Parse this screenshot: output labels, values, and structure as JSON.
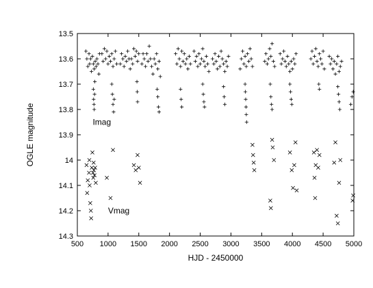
{
  "chart_data": {
    "type": "scatter",
    "xlabel": "HJD - 2450000",
    "ylabel": "OGLE magnitude",
    "xlim": [
      500,
      5000
    ],
    "ylim": [
      14.3,
      13.5
    ],
    "y_inverted": true,
    "xticks": [
      500,
      1000,
      1500,
      2000,
      2500,
      3000,
      3500,
      4000,
      4500,
      5000
    ],
    "xtick_labels": [
      "500",
      "1000",
      "1500",
      "2000",
      "2500",
      "3000",
      "3500",
      "4000",
      "4500",
      "5000"
    ],
    "yticks": [
      13.5,
      13.6,
      13.7,
      13.8,
      13.9,
      14.0,
      14.1,
      14.2,
      14.3
    ],
    "ytick_labels": [
      "13.5",
      "13.6",
      "13.7",
      "13.8",
      "13.9",
      "14",
      "14.1",
      "14.2",
      "14.3"
    ],
    "grid": false,
    "annotations": [
      {
        "text": "Imag",
        "x": 750,
        "y": 13.85
      },
      {
        "text": "Vmag",
        "x": 1000,
        "y": 14.2
      }
    ],
    "series": [
      {
        "name": "Imag",
        "marker": "plus",
        "points": [
          [
            640,
            13.57
          ],
          [
            655,
            13.6
          ],
          [
            670,
            13.63
          ],
          [
            690,
            13.58
          ],
          [
            700,
            13.62
          ],
          [
            715,
            13.6
          ],
          [
            730,
            13.65
          ],
          [
            745,
            13.59
          ],
          [
            760,
            13.62
          ],
          [
            775,
            13.64
          ],
          [
            790,
            13.61
          ],
          [
            805,
            13.63
          ],
          [
            820,
            13.6
          ],
          [
            835,
            13.62
          ],
          [
            850,
            13.66
          ],
          [
            860,
            13.58
          ],
          [
            760,
            13.72
          ],
          [
            765,
            13.76
          ],
          [
            770,
            13.78
          ],
          [
            775,
            13.8
          ],
          [
            780,
            13.74
          ],
          [
            785,
            13.69
          ],
          [
            900,
            13.58
          ],
          [
            920,
            13.61
          ],
          [
            940,
            13.56
          ],
          [
            960,
            13.6
          ],
          [
            980,
            13.57
          ],
          [
            1000,
            13.62
          ],
          [
            1020,
            13.59
          ],
          [
            1040,
            13.61
          ],
          [
            1060,
            13.58
          ],
          [
            1080,
            13.63
          ],
          [
            1100,
            13.6
          ],
          [
            1120,
            13.57
          ],
          [
            1140,
            13.62
          ],
          [
            1060,
            13.7
          ],
          [
            1070,
            13.74
          ],
          [
            1080,
            13.78
          ],
          [
            1090,
            13.81
          ],
          [
            1100,
            13.76
          ],
          [
            1200,
            13.62
          ],
          [
            1220,
            13.58
          ],
          [
            1240,
            13.6
          ],
          [
            1260,
            13.63
          ],
          [
            1280,
            13.59
          ],
          [
            1300,
            13.61
          ],
          [
            1320,
            13.57
          ],
          [
            1340,
            13.6
          ],
          [
            1360,
            13.64
          ],
          [
            1380,
            13.6
          ],
          [
            1400,
            13.62
          ],
          [
            1420,
            13.56
          ],
          [
            1440,
            13.59
          ],
          [
            1460,
            13.57
          ],
          [
            1480,
            13.61
          ],
          [
            1500,
            13.58
          ],
          [
            1470,
            13.69
          ],
          [
            1475,
            13.73
          ],
          [
            1480,
            13.77
          ],
          [
            1550,
            13.62
          ],
          [
            1570,
            13.58
          ],
          [
            1590,
            13.6
          ],
          [
            1610,
            13.63
          ],
          [
            1630,
            13.58
          ],
          [
            1650,
            13.61
          ],
          [
            1670,
            13.55
          ],
          [
            1690,
            13.6
          ],
          [
            1710,
            13.63
          ],
          [
            1730,
            13.66
          ],
          [
            1750,
            13.6
          ],
          [
            1770,
            13.62
          ],
          [
            1790,
            13.58
          ],
          [
            1810,
            13.64
          ],
          [
            1830,
            13.61
          ],
          [
            1850,
            13.67
          ],
          [
            1800,
            13.72
          ],
          [
            1810,
            13.75
          ],
          [
            1820,
            13.79
          ],
          [
            1830,
            13.81
          ],
          [
            2100,
            13.58
          ],
          [
            2120,
            13.62
          ],
          [
            2140,
            13.56
          ],
          [
            2160,
            13.6
          ],
          [
            2180,
            13.63
          ],
          [
            2200,
            13.57
          ],
          [
            2220,
            13.61
          ],
          [
            2240,
            13.58
          ],
          [
            2260,
            13.62
          ],
          [
            2280,
            13.6
          ],
          [
            2300,
            13.64
          ],
          [
            2320,
            13.59
          ],
          [
            2340,
            13.62
          ],
          [
            2180,
            13.72
          ],
          [
            2190,
            13.76
          ],
          [
            2200,
            13.79
          ],
          [
            2400,
            13.57
          ],
          [
            2420,
            13.61
          ],
          [
            2440,
            13.59
          ],
          [
            2460,
            13.63
          ],
          [
            2480,
            13.58
          ],
          [
            2500,
            13.62
          ],
          [
            2520,
            13.6
          ],
          [
            2540,
            13.56
          ],
          [
            2560,
            13.61
          ],
          [
            2580,
            13.63
          ],
          [
            2600,
            13.59
          ],
          [
            2620,
            13.62
          ],
          [
            2640,
            13.65
          ],
          [
            2540,
            13.7
          ],
          [
            2550,
            13.74
          ],
          [
            2560,
            13.77
          ],
          [
            2570,
            13.79
          ],
          [
            2700,
            13.6
          ],
          [
            2720,
            13.62
          ],
          [
            2740,
            13.58
          ],
          [
            2760,
            13.61
          ],
          [
            2780,
            13.64
          ],
          [
            2800,
            13.59
          ],
          [
            2820,
            13.63
          ],
          [
            2840,
            13.57
          ],
          [
            2860,
            13.6
          ],
          [
            2880,
            13.62
          ],
          [
            2900,
            13.65
          ],
          [
            2920,
            13.61
          ],
          [
            2940,
            13.63
          ],
          [
            2960,
            13.59
          ],
          [
            2880,
            13.71
          ],
          [
            2890,
            13.75
          ],
          [
            2900,
            13.78
          ],
          [
            3150,
            13.64
          ],
          [
            3170,
            13.6
          ],
          [
            3190,
            13.57
          ],
          [
            3210,
            13.62
          ],
          [
            3230,
            13.59
          ],
          [
            3250,
            13.63
          ],
          [
            3270,
            13.58
          ],
          [
            3290,
            13.61
          ],
          [
            3310,
            13.56
          ],
          [
            3330,
            13.6
          ],
          [
            3350,
            13.63
          ],
          [
            3230,
            13.7
          ],
          [
            3235,
            13.73
          ],
          [
            3240,
            13.76
          ],
          [
            3245,
            13.79
          ],
          [
            3250,
            13.82
          ],
          [
            3255,
            13.85
          ],
          [
            3550,
            13.61
          ],
          [
            3570,
            13.58
          ],
          [
            3590,
            13.62
          ],
          [
            3610,
            13.6
          ],
          [
            3630,
            13.56
          ],
          [
            3650,
            13.59
          ],
          [
            3670,
            13.54
          ],
          [
            3690,
            13.61
          ],
          [
            3710,
            13.63
          ],
          [
            3640,
            13.7
          ],
          [
            3650,
            13.75
          ],
          [
            3660,
            13.78
          ],
          [
            3670,
            13.8
          ],
          [
            3800,
            13.58
          ],
          [
            3820,
            13.62
          ],
          [
            3840,
            13.6
          ],
          [
            3860,
            13.57
          ],
          [
            3880,
            13.61
          ],
          [
            3900,
            13.63
          ],
          [
            3920,
            13.59
          ],
          [
            3940,
            13.62
          ],
          [
            3960,
            13.65
          ],
          [
            3980,
            13.61
          ],
          [
            4000,
            13.64
          ],
          [
            4020,
            13.6
          ],
          [
            4040,
            13.62
          ],
          [
            4060,
            13.58
          ],
          [
            3960,
            13.7
          ],
          [
            3970,
            13.73
          ],
          [
            3980,
            13.76
          ],
          [
            3990,
            13.78
          ],
          [
            4300,
            13.6
          ],
          [
            4320,
            13.57
          ],
          [
            4340,
            13.62
          ],
          [
            4360,
            13.59
          ],
          [
            4380,
            13.56
          ],
          [
            4400,
            13.61
          ],
          [
            4420,
            13.63
          ],
          [
            4440,
            13.58
          ],
          [
            4460,
            13.6
          ],
          [
            4480,
            13.62
          ],
          [
            4500,
            13.57
          ],
          [
            4520,
            13.64
          ],
          [
            4430,
            13.7
          ],
          [
            4440,
            13.72
          ],
          [
            4600,
            13.59
          ],
          [
            4620,
            13.62
          ],
          [
            4640,
            13.6
          ],
          [
            4660,
            13.64
          ],
          [
            4680,
            13.61
          ],
          [
            4700,
            13.66
          ],
          [
            4720,
            13.62
          ],
          [
            4740,
            13.59
          ],
          [
            4760,
            13.65
          ],
          [
            4780,
            13.63
          ],
          [
            4800,
            13.61
          ],
          [
            4740,
            13.71
          ],
          [
            4750,
            13.74
          ],
          [
            4760,
            13.77
          ],
          [
            4770,
            13.8
          ],
          [
            4950,
            13.78
          ],
          [
            4970,
            13.75
          ],
          [
            4990,
            13.73
          ]
        ]
      },
      {
        "name": "Vmag",
        "marker": "x",
        "points": [
          [
            650,
            14.02
          ],
          [
            670,
            14.08
          ],
          [
            690,
            14.05
          ],
          [
            700,
            14.1
          ],
          [
            710,
            14.17
          ],
          [
            720,
            14.2
          ],
          [
            735,
            14.03
          ],
          [
            745,
            13.97
          ],
          [
            755,
            14.05
          ],
          [
            760,
            14.07
          ],
          [
            770,
            14.04
          ],
          [
            780,
            14.06
          ],
          [
            790,
            14.03
          ],
          [
            800,
            14.09
          ],
          [
            660,
            14.13
          ],
          [
            695,
            14.0
          ],
          [
            725,
            14.23
          ],
          [
            765,
            14.01
          ],
          [
            980,
            14.07
          ],
          [
            1040,
            14.15
          ],
          [
            1080,
            13.96
          ],
          [
            1420,
            14.02
          ],
          [
            1450,
            14.04
          ],
          [
            1480,
            13.98
          ],
          [
            1500,
            14.03
          ],
          [
            1520,
            14.09
          ],
          [
            3350,
            13.94
          ],
          [
            3360,
            13.98
          ],
          [
            3370,
            14.01
          ],
          [
            3380,
            14.04
          ],
          [
            3640,
            14.16
          ],
          [
            3650,
            14.19
          ],
          [
            3670,
            13.92
          ],
          [
            3680,
            13.95
          ],
          [
            3700,
            14.0
          ],
          [
            3960,
            13.97
          ],
          [
            3990,
            14.04
          ],
          [
            4010,
            14.11
          ],
          [
            4030,
            14.02
          ],
          [
            4050,
            13.93
          ],
          [
            4070,
            14.12
          ],
          [
            4350,
            13.97
          ],
          [
            4360,
            14.07
          ],
          [
            4370,
            14.15
          ],
          [
            4380,
            14.02
          ],
          [
            4400,
            13.96
          ],
          [
            4420,
            14.03
          ],
          [
            4440,
            13.98
          ],
          [
            4680,
            14.01
          ],
          [
            4700,
            13.93
          ],
          [
            4720,
            14.22
          ],
          [
            4740,
            14.25
          ],
          [
            4760,
            14.09
          ],
          [
            4780,
            14.0
          ],
          [
            4980,
            14.16
          ],
          [
            4990,
            14.14
          ]
        ]
      }
    ]
  }
}
